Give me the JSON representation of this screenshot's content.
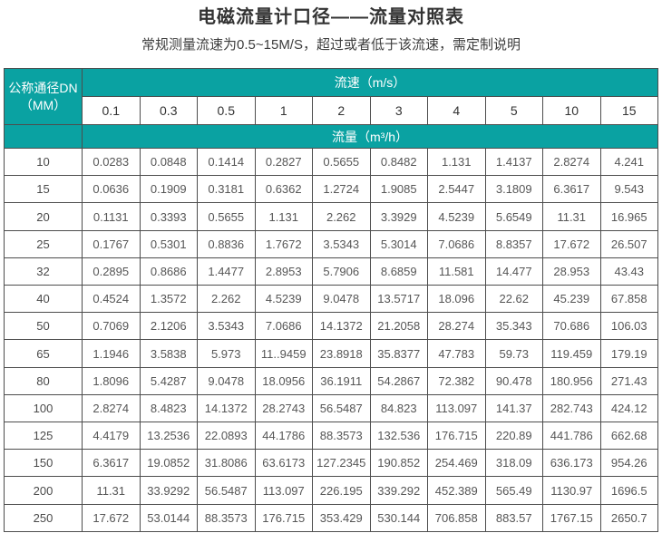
{
  "title": "电磁流量计口径——流量对照表",
  "subtitle": "常规测量流速为0.5~15M/S，超过或者低于该流速，需定制说明",
  "colors": {
    "accent_teal": "#0aa2a2",
    "border": "#4d4d4d",
    "title_text": "#333333",
    "cell_text": "#565656"
  },
  "table": {
    "dn_header_line1": "公称通径DN",
    "dn_header_line2": "（MM）",
    "velocity_header": "流速（m/s）",
    "flow_header": "流量（m³/h）",
    "velocities": [
      "0.1",
      "0.3",
      "0.5",
      "1",
      "2",
      "3",
      "4",
      "5",
      "10",
      "15"
    ],
    "rows": [
      {
        "dn": "10",
        "values": [
          "0.0283",
          "0.0848",
          "0.1414",
          "0.2827",
          "0.5655",
          "0.8482",
          "1.131",
          "1.4137",
          "2.8274",
          "4.241"
        ]
      },
      {
        "dn": "15",
        "values": [
          "0.0636",
          "0.1909",
          "0.3181",
          "0.6362",
          "1.2724",
          "1.9085",
          "2.5447",
          "3.1809",
          "6.3617",
          "9.543"
        ]
      },
      {
        "dn": "20",
        "values": [
          "0.1131",
          "0.3393",
          "0.5655",
          "1.131",
          "2.262",
          "3.3929",
          "4.5239",
          "5.6549",
          "11.31",
          "16.965"
        ]
      },
      {
        "dn": "25",
        "values": [
          "0.1767",
          "0.5301",
          "0.8836",
          "1.7672",
          "3.5343",
          "5.3014",
          "7.0686",
          "8.8357",
          "17.672",
          "26.507"
        ]
      },
      {
        "dn": "32",
        "values": [
          "0.2895",
          "0.8686",
          "1.4477",
          "2.8953",
          "5.7906",
          "8.6859",
          "11.581",
          "14.477",
          "28.953",
          "43.43"
        ]
      },
      {
        "dn": "40",
        "values": [
          "0.4524",
          "1.3572",
          "2.262",
          "4.5239",
          "9.0478",
          "13.5717",
          "18.096",
          "22.62",
          "45.239",
          "67.858"
        ]
      },
      {
        "dn": "50",
        "values": [
          "0.7069",
          "2.1206",
          "3.5343",
          "7.0686",
          "14.1372",
          "21.2058",
          "28.274",
          "35.343",
          "70.686",
          "106.03"
        ]
      },
      {
        "dn": "65",
        "values": [
          "1.1946",
          "3.5838",
          "5.973",
          "11..9459",
          "23.8918",
          "35.8377",
          "47.783",
          "59.73",
          "119.459",
          "179.19"
        ]
      },
      {
        "dn": "80",
        "values": [
          "1.8096",
          "5.4287",
          "9.0478",
          "18.0956",
          "36.1911",
          "54.2867",
          "72.382",
          "90.478",
          "180.956",
          "271.43"
        ]
      },
      {
        "dn": "100",
        "values": [
          "2.8274",
          "8.4823",
          "14.1372",
          "28.2743",
          "56.5487",
          "84.823",
          "113.097",
          "141.37",
          "282.743",
          "424.12"
        ]
      },
      {
        "dn": "125",
        "values": [
          "4.4179",
          "13.2536",
          "22.0893",
          "44.1786",
          "88.3573",
          "132.536",
          "176.715",
          "220.89",
          "441.786",
          "662.68"
        ]
      },
      {
        "dn": "150",
        "values": [
          "6.3617",
          "19.0852",
          "31.8086",
          "63.6173",
          "127.2345",
          "190.852",
          "254.469",
          "318.09",
          "636.173",
          "954.26"
        ]
      },
      {
        "dn": "200",
        "values": [
          "11.31",
          "33.9292",
          "56.5487",
          "113.097",
          "226.195",
          "339.292",
          "452.389",
          "565.49",
          "1130.97",
          "1696.5"
        ]
      },
      {
        "dn": "250",
        "values": [
          "17.672",
          "53.0144",
          "88.3573",
          "176.715",
          "353.429",
          "530.144",
          "706.858",
          "883.57",
          "1767.15",
          "2650.7"
        ]
      }
    ]
  }
}
